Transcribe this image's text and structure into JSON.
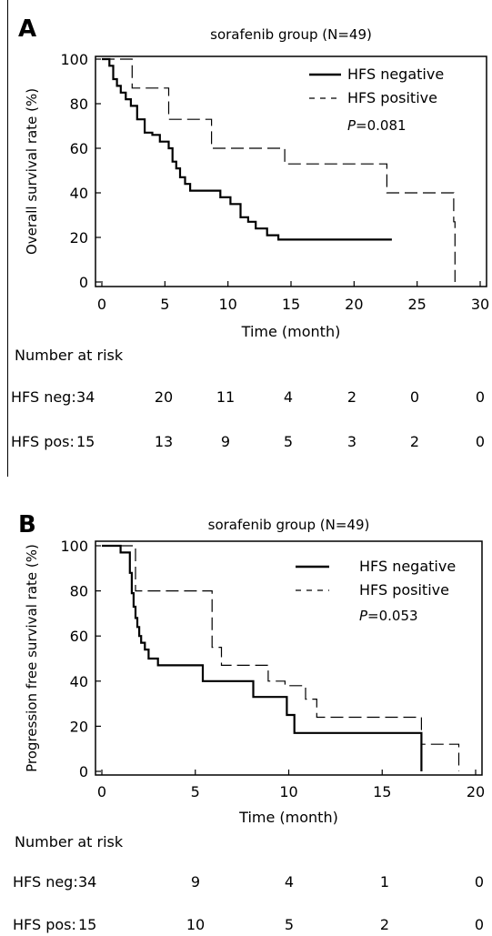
{
  "chart_data": [
    {
      "panel": "A",
      "type": "line",
      "title": "sorafenib group (N=49)",
      "xlabel": "Time (month)",
      "ylabel": "Overall survival rate (%)",
      "xlim": [
        0,
        30
      ],
      "ylim": [
        0,
        100
      ],
      "xticks": [
        "0",
        "5",
        "10",
        "15",
        "20",
        "25",
        "30"
      ],
      "yticks": [
        "0",
        "20",
        "40",
        "60",
        "80",
        "100"
      ],
      "grid": false,
      "legend": "top-right",
      "p_prefix": "P",
      "p_value": "=0.081",
      "series": [
        {
          "name": "HFS negative",
          "style": "solid",
          "x": [
            0,
            0.6,
            0.9,
            1.2,
            1.5,
            1.9,
            2.3,
            2.8,
            3.4,
            4.0,
            4.6,
            5.3,
            5.6,
            5.9,
            6.2,
            6.6,
            7.0,
            8.5,
            9.4,
            10.2,
            11.0,
            11.6,
            12.2,
            13.1,
            14.0,
            23.0
          ],
          "y": [
            100,
            97,
            91,
            88,
            85,
            82,
            79,
            73,
            67,
            66,
            63,
            60,
            54,
            51,
            47,
            44,
            41,
            41,
            38,
            35,
            29,
            27,
            24,
            21,
            19,
            19
          ]
        },
        {
          "name": "HFS positive",
          "style": "dashed",
          "x": [
            0,
            1.9,
            2.4,
            4.9,
            5.3,
            8.3,
            8.7,
            13.8,
            14.5,
            22.6,
            23.0,
            27.9,
            28.0
          ],
          "y": [
            100,
            100,
            87,
            87,
            73,
            73,
            60,
            60,
            53,
            40,
            40,
            27,
            0
          ]
        }
      ],
      "risk_table": {
        "title": "Number at risk",
        "time_points": [
          0,
          5,
          10,
          15,
          20,
          25,
          30
        ],
        "rows": [
          {
            "label": "HFS neg:",
            "values": [
              "34",
              "20",
              "11",
              "4",
              "2",
              "0",
              "0"
            ]
          },
          {
            "label": "HFS pos:",
            "values": [
              "15",
              "13",
              "9",
              "5",
              "3",
              "2",
              "0"
            ]
          }
        ]
      }
    },
    {
      "panel": "B",
      "type": "line",
      "title": "sorafenib group (N=49)",
      "xlabel": "Time (month)",
      "ylabel": "Progression free survival rate (%)",
      "xlim": [
        0,
        20
      ],
      "ylim": [
        0,
        100
      ],
      "xticks": [
        "0",
        "5",
        "10",
        "15",
        "20"
      ],
      "yticks": [
        "0",
        "20",
        "40",
        "60",
        "80",
        "100"
      ],
      "grid": false,
      "legend": "top-right",
      "p_prefix": "P",
      "p_value": "=0.053",
      "series": [
        {
          "name": "HFS negative",
          "style": "solid",
          "x": [
            0,
            1.0,
            1.5,
            1.6,
            1.7,
            1.8,
            1.9,
            2.0,
            2.1,
            2.3,
            2.5,
            3.0,
            5.4,
            8.1,
            9.9,
            10.3,
            11.1,
            17.1
          ],
          "y": [
            100,
            97,
            88,
            79,
            73,
            68,
            64,
            60,
            57,
            54,
            50,
            47,
            40,
            33,
            25,
            17,
            17,
            0
          ]
        },
        {
          "name": "HFS positive",
          "style": "dashed",
          "x": [
            0,
            1.5,
            1.8,
            5.4,
            5.9,
            6.4,
            8.2,
            8.9,
            9.8,
            10.9,
            11.5,
            16.4,
            17.1,
            19.1
          ],
          "y": [
            100,
            100,
            80,
            80,
            55,
            47,
            47,
            40,
            38,
            32,
            24,
            24,
            12,
            0
          ]
        }
      ],
      "risk_table": {
        "title": "Number at risk",
        "time_points": [
          0,
          5,
          10,
          15,
          20
        ],
        "rows": [
          {
            "label": "HFS neg:",
            "values": [
              "34",
              "9",
              "4",
              "1",
              "0"
            ]
          },
          {
            "label": "HFS pos:",
            "values": [
              "15",
              "10",
              "5",
              "2",
              "0"
            ]
          }
        ]
      }
    }
  ]
}
